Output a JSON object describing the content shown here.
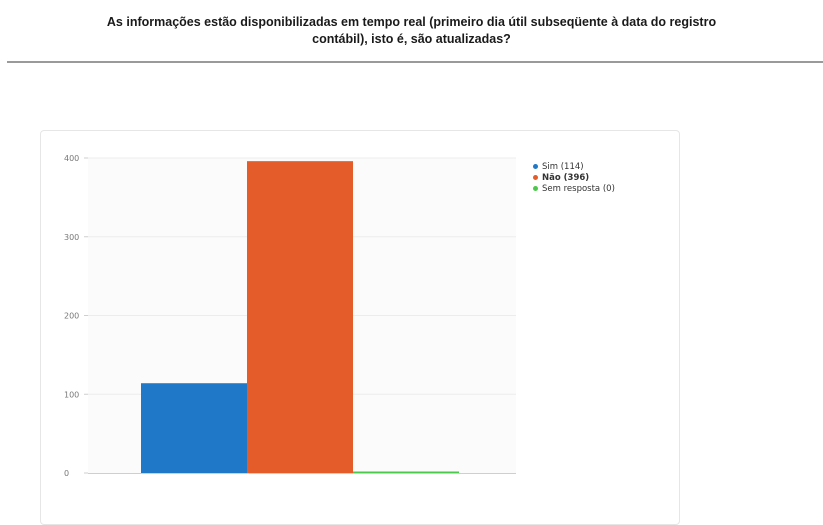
{
  "question": {
    "line1": "As informações estão disponibilizadas em tempo real (primeiro dia útil subseqüente à data do registro",
    "line2": "contábil), isto é, são atualizadas?"
  },
  "chart_data": {
    "type": "bar",
    "categories": [
      "Sim",
      "Não",
      "Sem resposta"
    ],
    "values": [
      114,
      396,
      0
    ],
    "colors": [
      "#1f78c8",
      "#e45c2a",
      "#4cc84c"
    ],
    "ylim": [
      0,
      400
    ],
    "yticks": [
      0,
      100,
      200,
      300,
      400
    ],
    "ytick_labels": [
      "0",
      "100",
      "200",
      "300",
      "400"
    ],
    "grid": true,
    "legend_position": "top-right",
    "legend": [
      {
        "label": "Sim (114)",
        "color": "#1f78c8",
        "bold": false
      },
      {
        "label": "Não (396)",
        "color": "#e45c2a",
        "bold": true
      },
      {
        "label": "Sem resposta (0)",
        "color": "#4cc84c",
        "bold": false
      }
    ]
  }
}
